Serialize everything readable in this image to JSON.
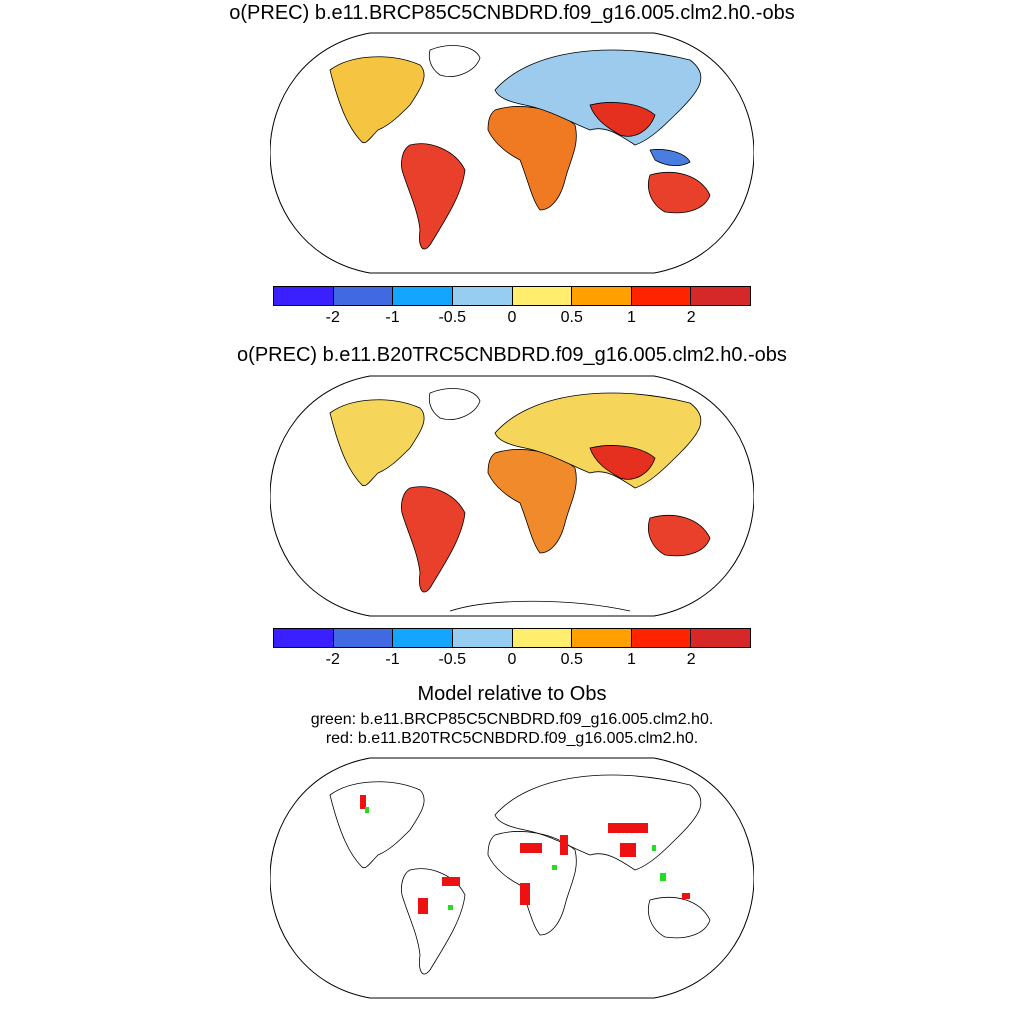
{
  "panels": [
    {
      "title": "o(PREC) b.e11.BRCP85C5CNBDRD.f09_g16.005.clm2.h0.-obs"
    },
    {
      "title": "o(PREC) b.e11.B20TRC5CNBDRD.f09_g16.005.clm2.h0.-obs"
    }
  ],
  "colorbar": {
    "colors": [
      "#3a1fff",
      "#4169e1",
      "#14a6ff",
      "#96cdf0",
      "#ffee6e",
      "#ffa000",
      "#ff2300",
      "#d62828"
    ],
    "ticks": [
      "-2",
      "-1",
      "-0.5",
      "0",
      "0.5",
      "1",
      "2"
    ]
  },
  "comparison": {
    "title": "Model relative to Obs",
    "legend_green": "green: b.e11.BRCP85C5CNBDRD.f09_g16.005.clm2.h0.",
    "legend_red": "red: b.e11.B20TRC5CNBDRD.f09_g16.005.clm2.h0.",
    "green_color": "#22dd22",
    "red_color": "#ee1111"
  }
}
